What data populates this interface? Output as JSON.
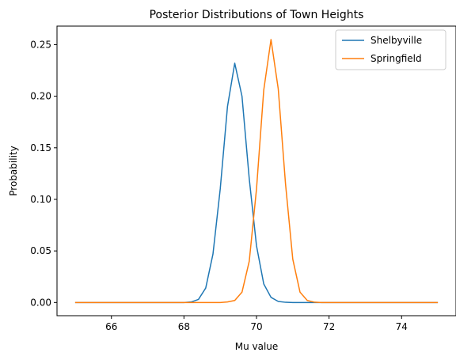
{
  "chart_data": {
    "type": "line",
    "title": "Posterior Distributions of Town Heights",
    "xlabel": "Mu value",
    "ylabel": "Probability",
    "xlim": [
      64.5,
      75.5
    ],
    "ylim": [
      -0.0128,
      0.268
    ],
    "xticks": [
      66,
      68,
      70,
      72,
      74
    ],
    "yticks": [
      0.0,
      0.05,
      0.1,
      0.15,
      0.2,
      0.25
    ],
    "ytick_labels": [
      "0.00",
      "0.05",
      "0.10",
      "0.15",
      "0.20",
      "0.25"
    ],
    "grid": false,
    "legend_position": "top-right",
    "x": [
      65.0,
      65.2,
      65.4,
      65.6,
      65.8,
      66.0,
      66.2,
      66.4,
      66.6,
      66.8,
      67.0,
      67.2,
      67.4,
      67.6,
      67.8,
      68.0,
      68.2,
      68.4,
      68.6,
      68.8,
      69.0,
      69.2,
      69.4,
      69.6,
      69.8,
      70.0,
      70.2,
      70.4,
      70.6,
      70.8,
      71.0,
      71.2,
      71.4,
      71.6,
      71.8,
      72.0,
      72.2,
      72.4,
      72.6,
      72.8,
      73.0,
      73.2,
      73.4,
      73.6,
      73.8,
      74.0,
      74.2,
      74.4,
      74.6,
      74.8,
      75.0
    ],
    "series": [
      {
        "name": "Shelbyville",
        "color": "#1f77b4",
        "values": [
          0,
          0,
          0,
          0,
          0,
          0,
          0,
          0,
          0,
          0,
          0,
          0,
          0,
          0,
          0,
          0,
          0.0005,
          0.003,
          0.014,
          0.047,
          0.11,
          0.19,
          0.232,
          0.2,
          0.12,
          0.055,
          0.018,
          0.005,
          0.001,
          0.0002,
          0,
          0,
          0,
          0,
          0,
          0,
          0,
          0,
          0,
          0,
          0,
          0,
          0,
          0,
          0,
          0,
          0,
          0,
          0,
          0,
          0
        ]
      },
      {
        "name": "Springfield",
        "color": "#ff7f0e",
        "values": [
          0,
          0,
          0,
          0,
          0,
          0,
          0,
          0,
          0,
          0,
          0,
          0,
          0,
          0,
          0,
          0,
          0,
          0,
          0,
          0,
          0,
          0.0005,
          0.002,
          0.01,
          0.04,
          0.11,
          0.206,
          0.255,
          0.207,
          0.115,
          0.042,
          0.01,
          0.002,
          0.0003,
          0,
          0,
          0,
          0,
          0,
          0,
          0,
          0,
          0,
          0,
          0,
          0,
          0,
          0,
          0,
          0,
          0
        ]
      }
    ]
  }
}
